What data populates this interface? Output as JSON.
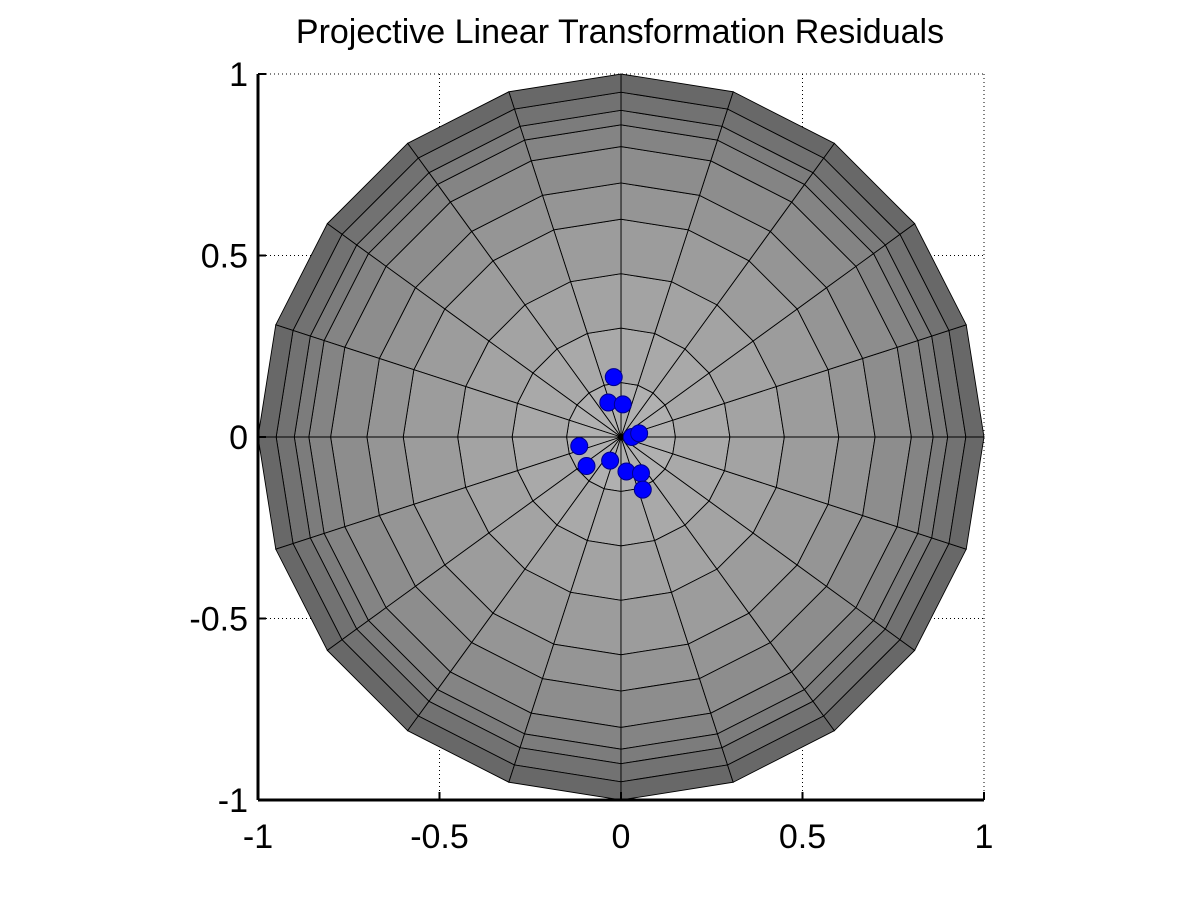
{
  "chart_data": {
    "type": "scatter",
    "title": "Projective Linear Transformation Residuals",
    "xlabel": "",
    "ylabel": "",
    "xlim": [
      -1,
      1
    ],
    "ylim": [
      -1,
      1
    ],
    "x_ticks": [
      -1,
      -0.5,
      0,
      0.5,
      1
    ],
    "y_ticks": [
      -1,
      -0.5,
      0,
      0.5,
      1
    ],
    "x_tick_labels": [
      "-1",
      "-0.5",
      "0",
      "0.5",
      "1"
    ],
    "y_tick_labels": [
      "-1",
      "-0.5",
      "0",
      "0.5",
      "1"
    ],
    "grid": true,
    "background_disk": {
      "radius": 1,
      "rings": [
        0.15,
        0.3,
        0.45,
        0.6,
        0.7,
        0.8,
        0.86,
        0.9,
        0.95,
        1.0
      ],
      "sectors": 20,
      "ring_colors": [
        "#b0b0b0",
        "#a9a9a9",
        "#a3a3a3",
        "#9c9c9c",
        "#959595",
        "#8d8d8d",
        "#848484",
        "#7c7c7c",
        "#727272",
        "#686868"
      ],
      "edge_color": "#000000"
    },
    "series": [
      {
        "marker_color": "#0000ff",
        "points": [
          {
            "x": -0.02,
            "y": 0.165
          },
          {
            "x": -0.035,
            "y": 0.095
          },
          {
            "x": 0.005,
            "y": 0.09
          },
          {
            "x": 0.03,
            "y": 0.0
          },
          {
            "x": 0.05,
            "y": 0.01
          },
          {
            "x": -0.115,
            "y": -0.025
          },
          {
            "x": -0.095,
            "y": -0.08
          },
          {
            "x": -0.03,
            "y": -0.065
          },
          {
            "x": 0.015,
            "y": -0.095
          },
          {
            "x": 0.055,
            "y": -0.1
          },
          {
            "x": 0.06,
            "y": -0.145
          }
        ]
      }
    ]
  }
}
